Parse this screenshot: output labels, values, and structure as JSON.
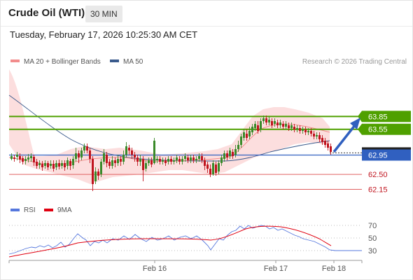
{
  "header": {
    "title": "Crude Oil (WTI)",
    "timeframe": "30 MIN"
  },
  "datetime": "Tuesday, February 17, 2026 10:25:30 AM CET",
  "colors": {
    "ma20": "#f28c8c",
    "ma50": "#3a5a8c",
    "resistance": "#4fa000",
    "support": "#e06060",
    "pivot": "#3060c0",
    "up": "#3a8a2a",
    "down": "#c0141e",
    "bb": "#fcdede",
    "rsi": "#5577dd",
    "rsi_ma": "#e00010"
  },
  "price_legend": [
    {
      "label": "MA 20 + Bollinger Bands"
    },
    {
      "label": "MA 50"
    }
  ],
  "copyright": "Research © 2026 Trading Central",
  "price_axis": {
    "min": 62.0,
    "max": 64.0
  },
  "levels": [
    {
      "kind": "resistance",
      "label": "63.85",
      "value": 63.85
    },
    {
      "kind": "resistance",
      "label": "63.55",
      "value": 63.55
    },
    {
      "kind": "last",
      "label": "63.00",
      "value": 63.0
    },
    {
      "kind": "pivot",
      "label": "62.95",
      "value": 62.95
    },
    {
      "kind": "support",
      "label": "62.50",
      "value": 62.5
    },
    {
      "kind": "support",
      "label": "62.15",
      "value": 62.15
    }
  ],
  "rsi_legend": [
    {
      "label": "RSI"
    },
    {
      "label": "9MA"
    }
  ],
  "rsi_axis": {
    "min": 15,
    "max": 80,
    "ticks": [
      "70",
      "50",
      "30"
    ],
    "tick_values": [
      70,
      50,
      30
    ]
  },
  "x_labels": [
    "Feb 16",
    "Feb 17",
    "Feb 18"
  ]
}
